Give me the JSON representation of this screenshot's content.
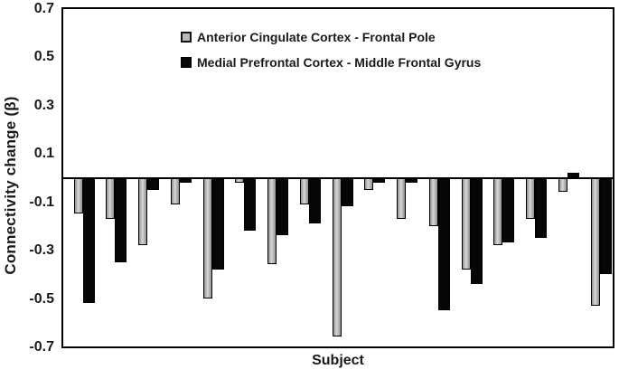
{
  "chart_data": {
    "type": "bar",
    "title": "",
    "xlabel": "Subject",
    "ylabel": "Connectivity change (β)",
    "ylim": [
      -0.7,
      0.7
    ],
    "yticks": [
      "0.7",
      "0.5",
      "0.3",
      "0.1",
      "-0.1",
      "-0.3",
      "-0.5",
      "-0.7"
    ],
    "num_subjects": 17,
    "grid": false,
    "legend_position": "top-center-inside",
    "series": [
      {
        "name": "Anterior Cingulate Cortex - Frontal Pole",
        "swatch": "gray",
        "fill_color": "#b9b9b9",
        "values": [
          -0.15,
          -0.17,
          -0.28,
          -0.11,
          -0.5,
          -0.02,
          -0.36,
          -0.11,
          -0.66,
          -0.05,
          -0.17,
          -0.2,
          -0.38,
          -0.28,
          -0.17,
          -0.06,
          -0.53
        ]
      },
      {
        "name": "Medial Prefrontal Cortex - Middle Frontal Gyrus",
        "swatch": "black",
        "fill_color": "#060606",
        "values": [
          -0.52,
          -0.35,
          -0.05,
          -0.02,
          -0.38,
          -0.22,
          -0.24,
          -0.19,
          -0.12,
          -0.02,
          -0.02,
          -0.55,
          -0.44,
          -0.27,
          -0.25,
          0.02,
          -0.4
        ]
      }
    ]
  },
  "colors": {
    "background": "#ffffff",
    "axis": "#000000",
    "text": "#1a1a1a"
  }
}
